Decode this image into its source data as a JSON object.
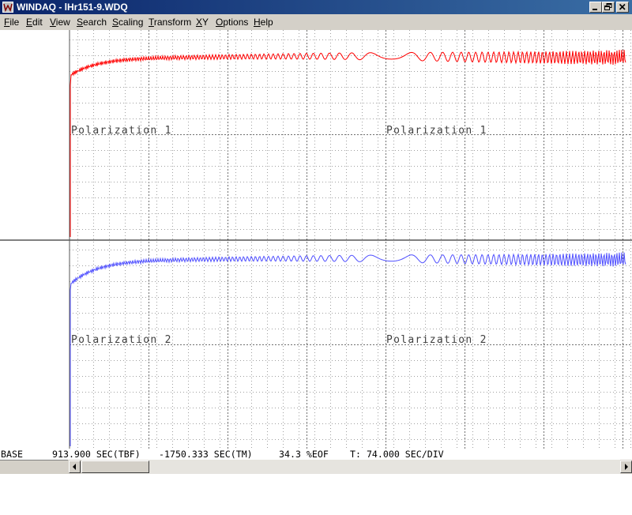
{
  "window": {
    "title": "WINDAQ - lHr151-9.WDQ",
    "app_icon": "windaq-logo-icon",
    "controls": [
      "minimize-icon",
      "restore-icon",
      "close-icon"
    ]
  },
  "menu": [
    {
      "label": "File",
      "accel": "F",
      "rest": "ile"
    },
    {
      "label": "Edit",
      "accel": "E",
      "rest": "dit"
    },
    {
      "label": "View",
      "accel": "V",
      "rest": "iew"
    },
    {
      "label": "Search",
      "accel": "S",
      "rest": "earch"
    },
    {
      "label": "Scaling",
      "accel": "S",
      "rest": "caling"
    },
    {
      "label": "Transform",
      "accel": "T",
      "rest": "ransform"
    },
    {
      "label": "XY",
      "accel": "X",
      "rest": "Y"
    },
    {
      "label": "Options",
      "accel": "O",
      "rest": "ptions"
    },
    {
      "label": "Help",
      "accel": "H",
      "rest": "elp"
    }
  ],
  "channels": [
    {
      "label": "Polarization 1",
      "color": "#ff0000"
    },
    {
      "label": "Polarization 2",
      "color": "#5050ff"
    }
  ],
  "status": {
    "mode": "BASE",
    "tbf": "913.900 SEC(TBF)",
    "tm": "-1750.333 SEC(TM)",
    "eof": "34.3 %EOF",
    "tdiv": "T: 74.000 SEC/DIV"
  }
}
